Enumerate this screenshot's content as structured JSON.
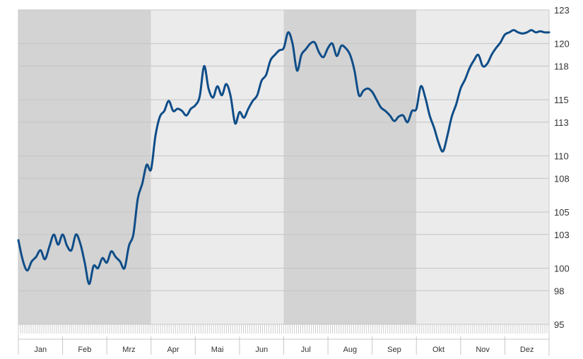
{
  "chart_data": {
    "type": "line",
    "title": "",
    "xlabel": "",
    "ylabel": "",
    "ylim": [
      95,
      123
    ],
    "yticks": [
      95,
      98,
      100,
      103,
      105,
      108,
      110,
      113,
      115,
      118,
      120,
      123
    ],
    "ytick_labels": [
      "95",
      "98",
      "100",
      "103",
      "105",
      "108",
      "110",
      "113",
      "115",
      "118",
      "120",
      "123"
    ],
    "months": [
      "Jan",
      "Feb",
      "Mrz",
      "Apr",
      "Mai",
      "Jun",
      "Jul",
      "Aug",
      "Sep",
      "Okt",
      "Nov",
      "Dez"
    ],
    "shaded_bands": [
      {
        "from": "Jan",
        "to": "Mrz",
        "color": "#d3d3d3"
      },
      {
        "from": "Apr",
        "to": "Jun",
        "color": "#ebebeb"
      },
      {
        "from": "Jul",
        "to": "Sep",
        "color": "#d3d3d3"
      },
      {
        "from": "Okt",
        "to": "Dez",
        "color": "#ebebeb"
      }
    ],
    "grid": true,
    "line_color": "#0f4d88",
    "series": [
      {
        "x": [
          0.0,
          0.1,
          0.2,
          0.3,
          0.4,
          0.5,
          0.6,
          0.7,
          0.8,
          0.9,
          1.0,
          1.1,
          1.2,
          1.3,
          1.4,
          1.5,
          1.6,
          1.7,
          1.8,
          1.9,
          2.0,
          2.1,
          2.2,
          2.3,
          2.4,
          2.5,
          2.6,
          2.7,
          2.8,
          2.9,
          3.0,
          3.1,
          3.2,
          3.3,
          3.4,
          3.5,
          3.6,
          3.7,
          3.8,
          3.9,
          4.0,
          4.1,
          4.2,
          4.3,
          4.4,
          4.5,
          4.6,
          4.7,
          4.8,
          4.9,
          5.0,
          5.1,
          5.2,
          5.3,
          5.4,
          5.5,
          5.6,
          5.7,
          5.8,
          5.9,
          6.0,
          6.1,
          6.2,
          6.3,
          6.4,
          6.5,
          6.6,
          6.7,
          6.8,
          6.9,
          7.0,
          7.1,
          7.2,
          7.3,
          7.4,
          7.5,
          7.6,
          7.7,
          7.8,
          7.9,
          8.0,
          8.1,
          8.2,
          8.3,
          8.4,
          8.5,
          8.6,
          8.7,
          8.8,
          8.9,
          9.0,
          9.1,
          9.2,
          9.3,
          9.4,
          9.5,
          9.6,
          9.7,
          9.8,
          9.9,
          10.0,
          10.1,
          10.2,
          10.3,
          10.4,
          10.5,
          10.6,
          10.7,
          10.8,
          10.9,
          11.0,
          11.1,
          11.2,
          11.3,
          11.4,
          11.5,
          11.6,
          11.7,
          11.8,
          11.9,
          12.0
        ],
        "values": [
          102.5,
          100.7,
          99.8,
          100.6,
          101.0,
          101.6,
          100.8,
          101.9,
          103.0,
          102.1,
          103.0,
          102.0,
          101.6,
          103.0,
          102.2,
          100.5,
          98.6,
          100.2,
          100.0,
          100.9,
          100.5,
          101.5,
          101.0,
          100.6,
          100.0,
          102.0,
          103.0,
          106.2,
          107.5,
          109.2,
          108.8,
          111.8,
          113.5,
          114.0,
          114.9,
          114.0,
          114.2,
          114.0,
          113.6,
          114.2,
          114.5,
          115.3,
          118.0,
          116.0,
          115.2,
          116.2,
          115.4,
          116.4,
          115.3,
          112.9,
          113.9,
          113.4,
          114.2,
          114.9,
          115.4,
          116.7,
          117.2,
          118.5,
          119.0,
          119.4,
          119.6,
          121.0,
          120.0,
          117.6,
          119.0,
          119.5,
          120.0,
          120.1,
          119.2,
          118.8,
          119.6,
          120.0,
          118.9,
          119.8,
          119.6,
          119.0,
          117.6,
          115.4,
          115.8,
          116.0,
          115.7,
          115.0,
          114.3,
          114.0,
          113.6,
          113.1,
          113.5,
          113.6,
          113.0,
          114.0,
          114.2,
          116.2,
          115.2,
          113.6,
          112.5,
          111.2,
          110.4,
          111.8,
          113.5,
          114.6,
          116.0,
          116.8,
          117.8,
          118.5,
          119.0,
          118.0,
          118.2,
          119.0,
          119.6,
          120.1,
          120.8,
          121.0,
          121.2,
          121.0,
          120.9,
          121.0,
          121.2,
          121.0,
          121.1,
          121.0,
          121.0
        ]
      }
    ]
  }
}
